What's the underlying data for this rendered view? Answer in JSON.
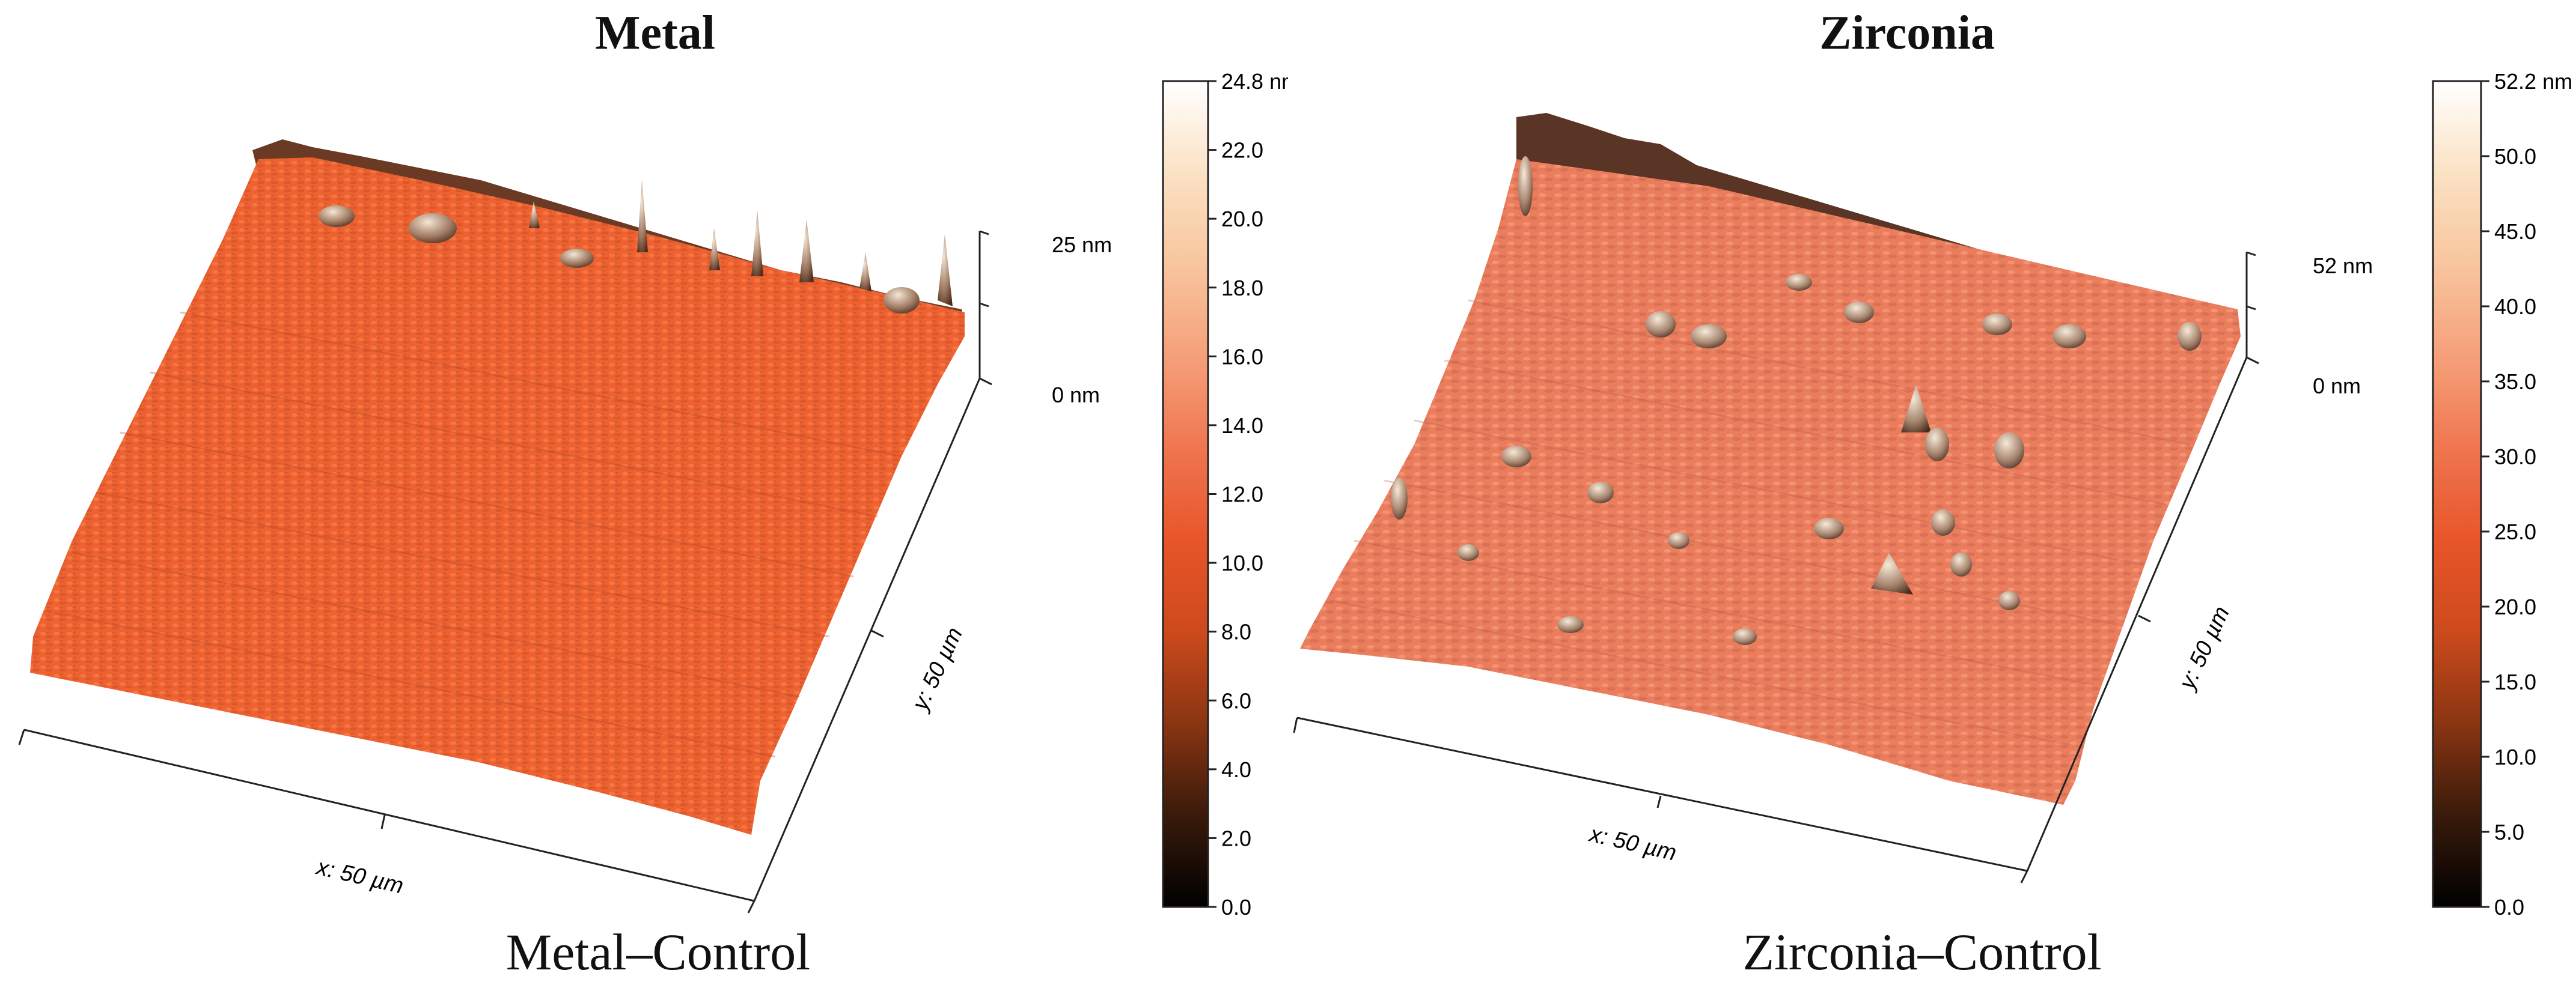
{
  "panels": [
    {
      "title": "Metal",
      "caption": "Metal–Control",
      "x_axis_label": "x: 50 µm",
      "y_axis_label": "y: 50 µm",
      "z_axis_top": "25 nm",
      "z_axis_bottom": "0 nm",
      "colorbar_ticks": [
        "24.8 nm",
        "22.0",
        "20.0",
        "18.0",
        "16.0",
        "14.0",
        "12.0",
        "10.0",
        "8.0",
        "6.0",
        "4.0",
        "2.0",
        "0.0"
      ],
      "colors": {
        "surface": "#f0612f",
        "ridge": "#8a5a44",
        "peak": "#e8d6c2"
      }
    },
    {
      "title": "Zirconia",
      "caption": "Zirconia–Control",
      "x_axis_label": "x: 50 µm",
      "y_axis_label": "y: 50 µm",
      "z_axis_top": "52 nm",
      "z_axis_bottom": "0 nm",
      "colorbar_ticks": [
        "52.2 nm",
        "50.0",
        "45.0",
        "40.0",
        "35.0",
        "30.0",
        "25.0",
        "20.0",
        "15.0",
        "10.0",
        "5.0",
        "0.0"
      ],
      "colors": {
        "surface": "#ec7a5c",
        "ridge": "#7a5a48",
        "peak": "#efe0cc"
      }
    }
  ],
  "colorbar": {
    "stops": [
      "#000000",
      "#3a1a0a",
      "#8a3512",
      "#cc4a1c",
      "#e8552a",
      "#ef7650",
      "#f5a07a",
      "#f8c59e",
      "#fbe2c4",
      "#ffffff"
    ]
  }
}
